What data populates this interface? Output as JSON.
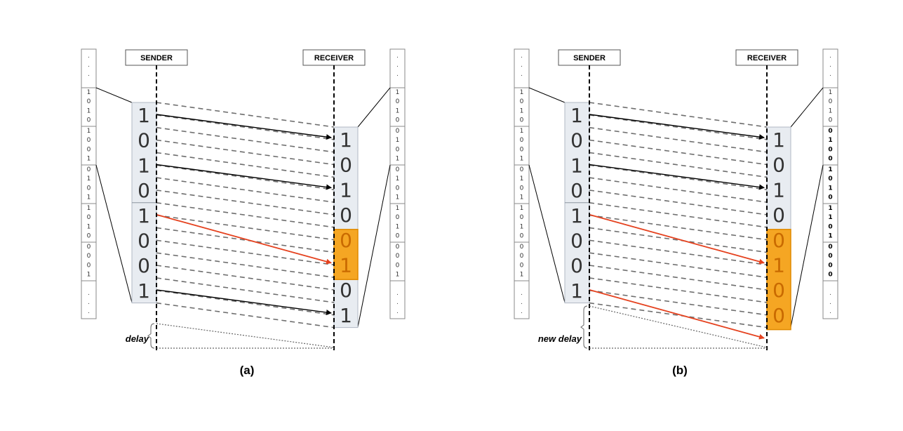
{
  "panels": [
    {
      "id": "a",
      "sender_label": "SENDER",
      "receiver_label": "RECEIVER",
      "sender_bits": [
        "1",
        "0",
        "1",
        "0",
        "1",
        "0",
        "0",
        "1"
      ],
      "receiver_bits": [
        "1",
        "0",
        "1",
        "0",
        "0",
        "1",
        "0",
        "1"
      ],
      "receiver_highlight": [
        4,
        5
      ],
      "arrows": [
        {
          "from": 0,
          "to": 0,
          "color": "#000000"
        },
        {
          "from": 2,
          "to": 2,
          "color": "#000000"
        },
        {
          "from": 4,
          "to": 5,
          "color": "#e5421f"
        },
        {
          "from": 7,
          "to": 7,
          "color": "#000000"
        }
      ],
      "left_stream": [
        ".",
        ".",
        ".",
        "1",
        "0",
        "1",
        "0",
        "1",
        "0",
        "0",
        "1",
        "0",
        "1",
        "0",
        "1",
        "1",
        "0",
        "1",
        "0",
        "0",
        "0",
        "0",
        "1",
        ".",
        ".",
        "."
      ],
      "right_stream": [
        ".",
        ".",
        ".",
        "1",
        "0",
        "1",
        "0",
        "0",
        "1",
        "0",
        "1",
        "0",
        "1",
        "0",
        "1",
        "1",
        "0",
        "1",
        "0",
        "0",
        "0",
        "0",
        "1",
        ".",
        ".",
        "."
      ],
      "right_bold": [],
      "delay_label": "delay",
      "caption": "(a)"
    },
    {
      "id": "b",
      "sender_label": "SENDER",
      "receiver_label": "RECEIVER",
      "sender_bits": [
        "1",
        "0",
        "1",
        "0",
        "1",
        "0",
        "0",
        "1"
      ],
      "receiver_bits": [
        "1",
        "0",
        "1",
        "0",
        "0",
        "1",
        "0",
        "0"
      ],
      "receiver_highlight": [
        4,
        5,
        6,
        7
      ],
      "arrows": [
        {
          "from": 0,
          "to": 0,
          "color": "#000000"
        },
        {
          "from": 2,
          "to": 2,
          "color": "#000000"
        },
        {
          "from": 4,
          "to": 5,
          "color": "#e5421f"
        },
        {
          "from": 7,
          "to": 8,
          "color": "#e5421f"
        }
      ],
      "left_stream": [
        ".",
        ".",
        ".",
        "1",
        "0",
        "1",
        "0",
        "1",
        "0",
        "0",
        "1",
        "0",
        "1",
        "0",
        "1",
        "1",
        "0",
        "1",
        "0",
        "0",
        "0",
        "0",
        "1",
        ".",
        ".",
        "."
      ],
      "right_stream": [
        ".",
        ".",
        ".",
        "1",
        "0",
        "1",
        "0",
        "0",
        "1",
        "0",
        "0",
        "1",
        "0",
        "1",
        "0",
        "1",
        "1",
        "0",
        "1",
        "0",
        "0",
        "0",
        "0",
        ".",
        ".",
        "."
      ],
      "right_bold": [
        7,
        8,
        9,
        10,
        11,
        12,
        13,
        14,
        15,
        16,
        17,
        18,
        19,
        20,
        21,
        22
      ],
      "delay_label": "new delay",
      "caption": "(b)"
    }
  ],
  "colors": {
    "sender_block": "#e8ecf1",
    "highlight_fill": "#f5a623",
    "highlight_stroke": "#e08a00",
    "dashed": "#6e6e6e",
    "red_arrow": "#e5421f"
  }
}
